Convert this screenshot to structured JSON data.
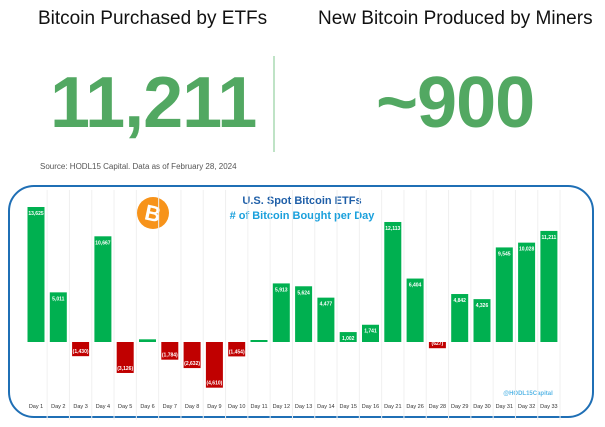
{
  "header": {
    "left_title": "Bitcoin Purchased by ETFs",
    "left_value": "11,211",
    "right_title": "New Bitcoin Produced by Miners",
    "right_value": "~900",
    "source": "Source: HODL15 Capital. Data as of February 28, 2024"
  },
  "colors": {
    "positive": "#00b050",
    "negative": "#c00000",
    "headline": "#52a862",
    "frame": "#1f6fb5",
    "bitcoin": "#f7931a"
  },
  "watermark": "@HODL15Capital",
  "logo_icon": "bitcoin-icon",
  "chart_data": {
    "type": "bar",
    "title": "U.S. Spot Bitcoin ETFs",
    "subtitle": "# of Bitcoin Bought per Day",
    "categories": [
      "Day 1",
      "Day 2",
      "Day 3",
      "Day 4",
      "Day 5",
      "Day 6",
      "Day 7",
      "Day 8",
      "Day 9",
      "Day 10",
      "Day 11",
      "Day 12",
      "Day 13",
      "Day 14",
      "Day 15",
      "Day 16",
      "Day 21",
      "Day 26",
      "Day 28",
      "Day 29",
      "Day 30",
      "Day 31",
      "Day 32",
      "Day 33"
    ],
    "values": [
      13625,
      5011,
      -1430,
      10667,
      -3126,
      270,
      -1784,
      -2632,
      -4610,
      -1454,
      200,
      5913,
      5624,
      4477,
      1002,
      1741,
      12113,
      6404,
      -627,
      4842,
      4326,
      9545,
      10028,
      11211
    ],
    "data_labels": [
      "13,625",
      "5,011",
      "(1,430)",
      "10,667",
      "(3,126)",
      "",
      "(1,784)",
      "(2,632)",
      "(4,610)",
      "(1,454)",
      "",
      "5,913",
      "5,624",
      "4,477",
      "1,002",
      "1,741",
      "12,113",
      "6,404",
      "(627)",
      "4,842",
      "4,326",
      "9,545",
      "10,028",
      "11,211"
    ],
    "grid": false,
    "legend": "none"
  }
}
